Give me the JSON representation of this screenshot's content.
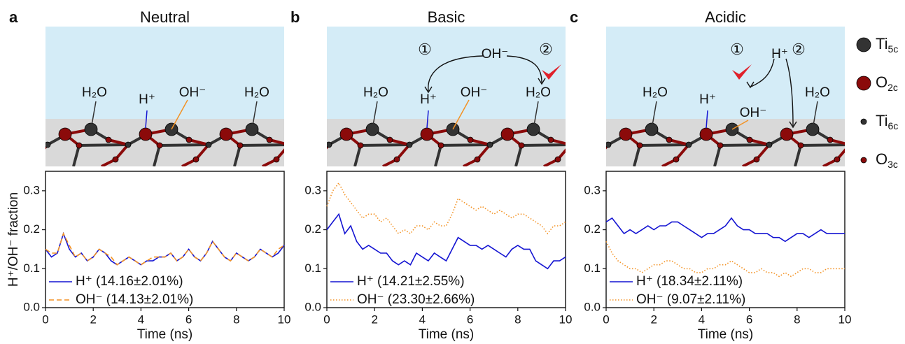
{
  "chart_data": [
    {
      "type": "line",
      "panel": "a",
      "title": "Neutral",
      "x_label": "Time (ns)",
      "y_label": "H⁺/OH⁻ fraction",
      "x": [
        0,
        0.25,
        0.5,
        0.75,
        1,
        1.25,
        1.5,
        1.75,
        2,
        2.25,
        2.5,
        2.75,
        3,
        3.25,
        3.5,
        3.75,
        4,
        4.25,
        4.5,
        4.75,
        5,
        5.25,
        5.5,
        5.75,
        6,
        6.25,
        6.5,
        6.75,
        7,
        7.25,
        7.5,
        7.75,
        8,
        8.25,
        8.5,
        8.75,
        9,
        9.25,
        9.5,
        9.75,
        10
      ],
      "xlim": [
        0,
        10
      ],
      "xticks": [
        0,
        2,
        4,
        6,
        8,
        10
      ],
      "ylim": [
        0,
        0.35
      ],
      "yticks": [
        {
          "value": 0,
          "label": "0.0"
        },
        0.1,
        0.2,
        0.3
      ],
      "legend": "lower left",
      "series": [
        {
          "name": "H⁺ (14.16±2.01%)",
          "color": "#1414d2",
          "dash": "solid",
          "values": [
            0.15,
            0.13,
            0.14,
            0.19,
            0.15,
            0.13,
            0.14,
            0.12,
            0.13,
            0.15,
            0.14,
            0.12,
            0.11,
            0.12,
            0.13,
            0.12,
            0.11,
            0.12,
            0.12,
            0.13,
            0.13,
            0.14,
            0.12,
            0.13,
            0.15,
            0.13,
            0.12,
            0.14,
            0.17,
            0.15,
            0.13,
            0.12,
            0.14,
            0.13,
            0.12,
            0.13,
            0.15,
            0.14,
            0.13,
            0.14,
            0.16
          ]
        },
        {
          "name": "OH⁻ (14.13±2.01%)",
          "color": "#f39224",
          "dash": "dashed",
          "values": [
            0.15,
            0.14,
            0.14,
            0.19,
            0.16,
            0.13,
            0.14,
            0.12,
            0.13,
            0.15,
            0.14,
            0.13,
            0.11,
            0.12,
            0.13,
            0.12,
            0.11,
            0.12,
            0.13,
            0.13,
            0.13,
            0.14,
            0.12,
            0.13,
            0.15,
            0.13,
            0.12,
            0.14,
            0.17,
            0.15,
            0.13,
            0.12,
            0.14,
            0.13,
            0.12,
            0.13,
            0.15,
            0.14,
            0.13,
            0.15,
            0.16
          ]
        }
      ]
    },
    {
      "type": "line",
      "panel": "b",
      "title": "Basic",
      "x_label": "Time (ns)",
      "x": [
        0,
        0.25,
        0.5,
        0.75,
        1,
        1.25,
        1.5,
        1.75,
        2,
        2.25,
        2.5,
        2.75,
        3,
        3.25,
        3.5,
        3.75,
        4,
        4.25,
        4.5,
        4.75,
        5,
        5.25,
        5.5,
        5.75,
        6,
        6.25,
        6.5,
        6.75,
        7,
        7.25,
        7.5,
        7.75,
        8,
        8.25,
        8.5,
        8.75,
        9,
        9.25,
        9.5,
        9.75,
        10
      ],
      "xlim": [
        0,
        10
      ],
      "xticks": [
        0,
        2,
        4,
        6,
        8,
        10
      ],
      "ylim": [
        0,
        0.35
      ],
      "yticks": [
        {
          "value": 0,
          "label": "0.0"
        },
        0.1,
        0.2,
        0.3
      ],
      "legend": "lower left",
      "series": [
        {
          "name": "H⁺ (14.21±2.55%)",
          "color": "#1414d2",
          "dash": "solid",
          "values": [
            0.2,
            0.22,
            0.24,
            0.19,
            0.21,
            0.17,
            0.15,
            0.16,
            0.15,
            0.14,
            0.14,
            0.12,
            0.11,
            0.12,
            0.11,
            0.14,
            0.13,
            0.12,
            0.14,
            0.13,
            0.12,
            0.15,
            0.18,
            0.17,
            0.16,
            0.16,
            0.15,
            0.16,
            0.15,
            0.14,
            0.13,
            0.15,
            0.16,
            0.15,
            0.15,
            0.12,
            0.11,
            0.1,
            0.12,
            0.12,
            0.13
          ]
        },
        {
          "name": "OH⁻ (23.30±2.66%)",
          "color": "#f39224",
          "dash": "dotted",
          "values": [
            0.26,
            0.3,
            0.32,
            0.29,
            0.27,
            0.25,
            0.23,
            0.24,
            0.24,
            0.22,
            0.23,
            0.21,
            0.19,
            0.2,
            0.19,
            0.21,
            0.21,
            0.2,
            0.22,
            0.21,
            0.21,
            0.24,
            0.28,
            0.27,
            0.26,
            0.25,
            0.26,
            0.25,
            0.24,
            0.25,
            0.24,
            0.23,
            0.24,
            0.24,
            0.23,
            0.22,
            0.21,
            0.19,
            0.21,
            0.21,
            0.22
          ]
        }
      ]
    },
    {
      "type": "line",
      "panel": "c",
      "title": "Acidic",
      "x_label": "Time (ns)",
      "x": [
        0,
        0.25,
        0.5,
        0.75,
        1,
        1.25,
        1.5,
        1.75,
        2,
        2.25,
        2.5,
        2.75,
        3,
        3.25,
        3.5,
        3.75,
        4,
        4.25,
        4.5,
        4.75,
        5,
        5.25,
        5.5,
        5.75,
        6,
        6.25,
        6.5,
        6.75,
        7,
        7.25,
        7.5,
        7.75,
        8,
        8.25,
        8.5,
        8.75,
        9,
        9.25,
        9.5,
        9.75,
        10
      ],
      "xlim": [
        0,
        10
      ],
      "xticks": [
        0,
        2,
        4,
        6,
        8,
        10
      ],
      "ylim": [
        0,
        0.35
      ],
      "yticks": [
        {
          "value": 0,
          "label": "0.0"
        },
        0.1,
        0.2,
        0.3
      ],
      "legend": "lower left",
      "series": [
        {
          "name": "H⁺ (18.34±2.11%)",
          "color": "#1414d2",
          "dash": "solid",
          "values": [
            0.22,
            0.23,
            0.21,
            0.19,
            0.2,
            0.19,
            0.2,
            0.21,
            0.2,
            0.21,
            0.21,
            0.22,
            0.22,
            0.21,
            0.2,
            0.19,
            0.18,
            0.19,
            0.19,
            0.2,
            0.21,
            0.23,
            0.21,
            0.2,
            0.2,
            0.19,
            0.19,
            0.19,
            0.18,
            0.18,
            0.17,
            0.18,
            0.19,
            0.19,
            0.18,
            0.19,
            0.2,
            0.19,
            0.19,
            0.19,
            0.19
          ]
        },
        {
          "name": "OH⁻ (9.07±2.11%)",
          "color": "#f39224",
          "dash": "dotted",
          "values": [
            0.17,
            0.14,
            0.12,
            0.11,
            0.1,
            0.1,
            0.09,
            0.1,
            0.11,
            0.11,
            0.12,
            0.12,
            0.11,
            0.1,
            0.1,
            0.09,
            0.09,
            0.1,
            0.1,
            0.11,
            0.11,
            0.12,
            0.11,
            0.1,
            0.09,
            0.09,
            0.1,
            0.09,
            0.09,
            0.08,
            0.09,
            0.08,
            0.09,
            0.1,
            0.1,
            0.09,
            0.09,
            0.1,
            0.1,
            0.1,
            0.1
          ]
        }
      ]
    }
  ],
  "diagrams": [
    {
      "labels": [
        "H₂O",
        "H⁺",
        "OH⁻",
        "H₂O"
      ]
    },
    {
      "top": "OH⁻",
      "steps": [
        "①",
        "②"
      ],
      "labels": [
        "H₂O",
        "H⁺",
        "OH⁻",
        "H₂O"
      ]
    },
    {
      "top": "H⁺",
      "steps": [
        "①",
        "②"
      ],
      "labels": [
        "H₂O",
        "H⁺",
        "OH⁻",
        "H₂O"
      ]
    }
  ],
  "atom_legend": [
    {
      "symbol": "Ti",
      "subscript": "5c"
    },
    {
      "symbol": "O",
      "subscript": "2c"
    },
    {
      "symbol": "Ti",
      "subscript": "6c"
    },
    {
      "symbol": "O",
      "subscript": "3c"
    }
  ]
}
